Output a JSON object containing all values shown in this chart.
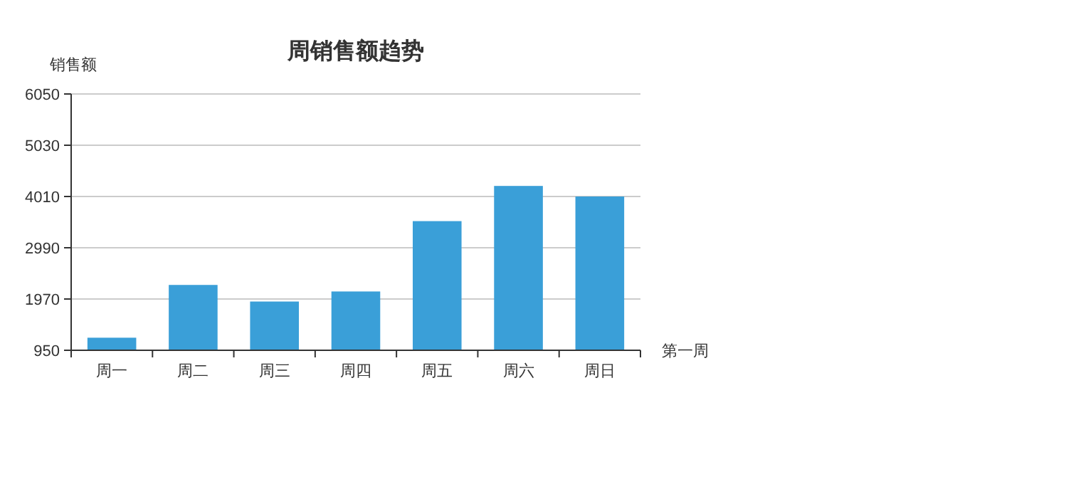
{
  "chart_data": {
    "type": "bar",
    "title": "周销售额趋势",
    "xlabel": "第一周",
    "ylabel": "销售额",
    "categories": [
      "周一",
      "周二",
      "周三",
      "周四",
      "周五",
      "周六",
      "周日"
    ],
    "values": [
      1200,
      2250,
      1920,
      2120,
      3520,
      4220,
      4010
    ],
    "color": "#3a9fd8",
    "ylim": [
      950,
      6050
    ],
    "yticks": [
      950,
      1970,
      2990,
      4010,
      5030,
      6050
    ],
    "grid": "y"
  }
}
